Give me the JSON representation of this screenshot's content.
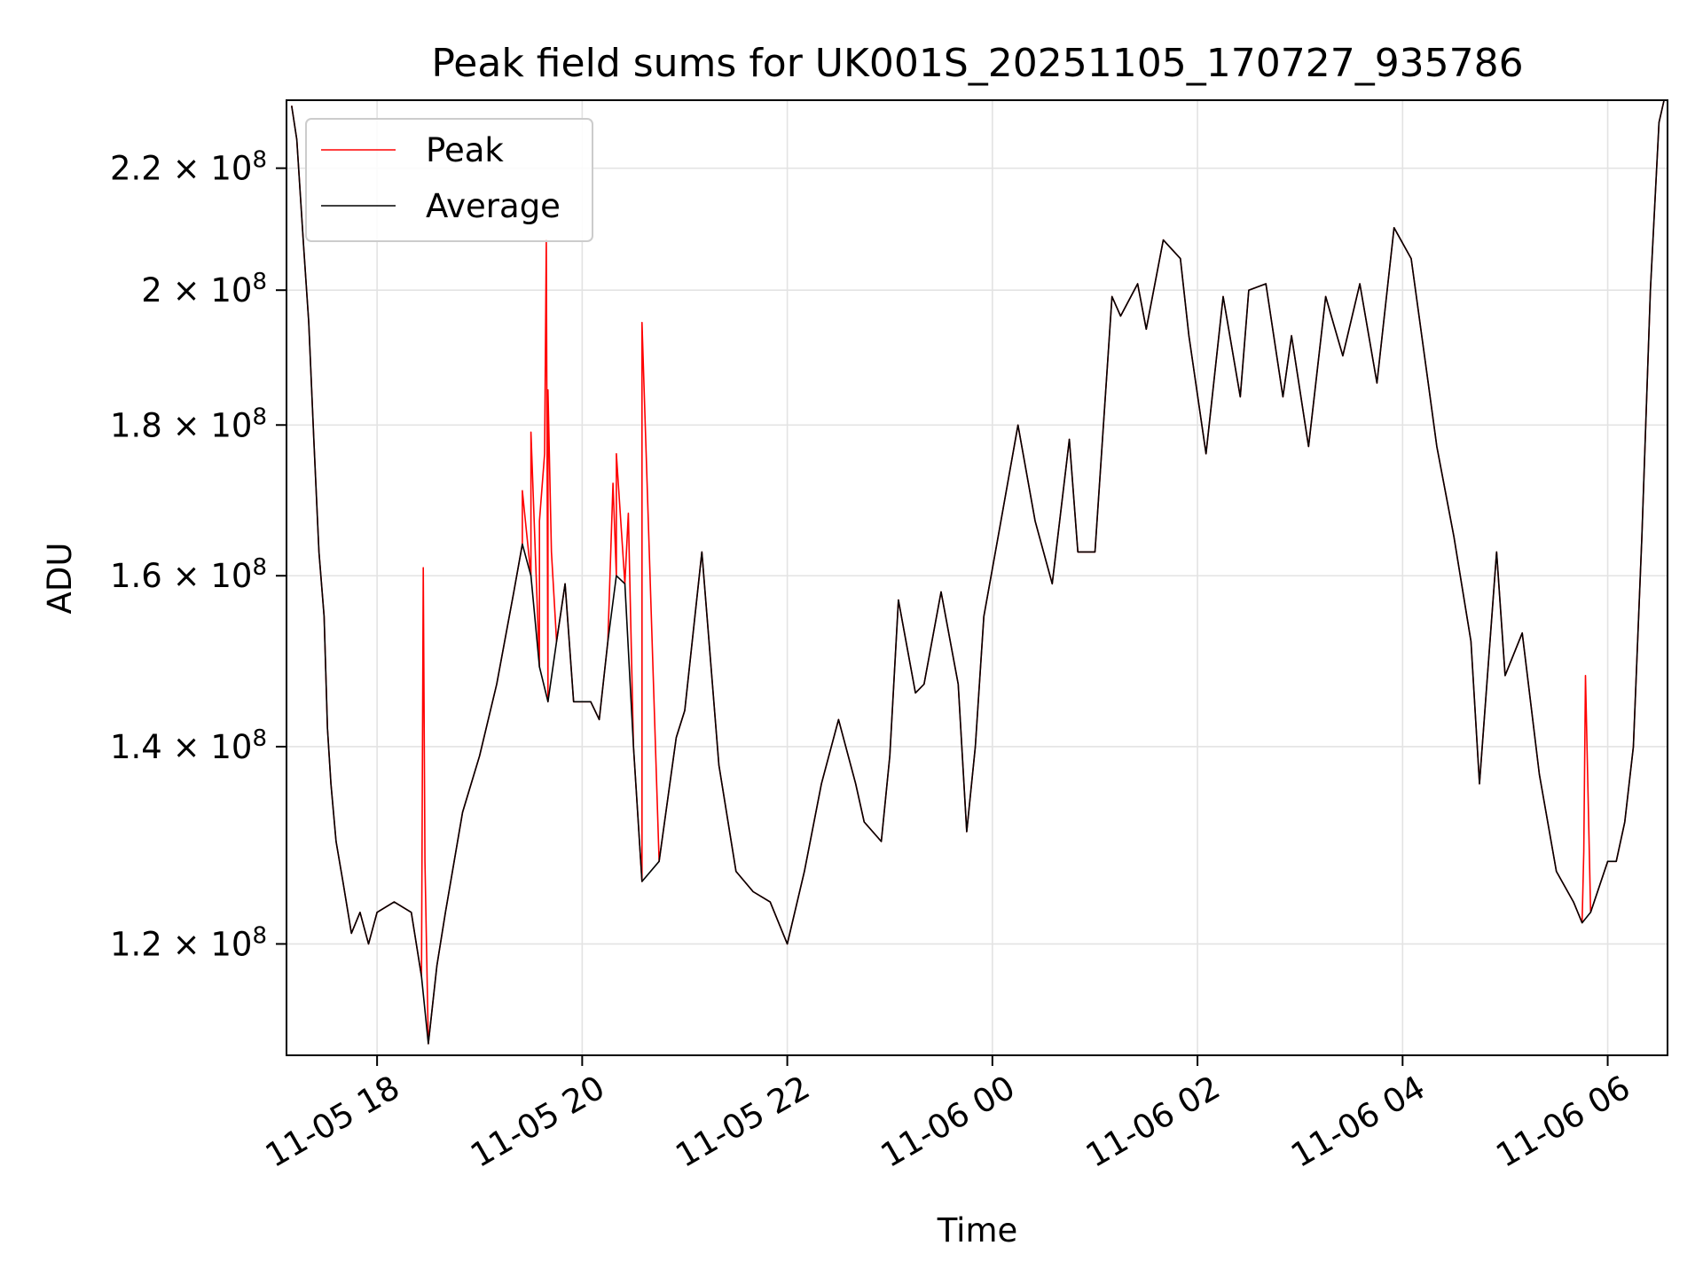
{
  "chart_data": {
    "type": "line",
    "title": "Peak field sums for UK001S_20251105_170727_935786",
    "xlabel": "Time",
    "ylabel": "ADU",
    "scale": {
      "y": "log"
    },
    "xlim": [
      "2025-11-05 17:07",
      "2025-11-06 06:35"
    ],
    "ylim": [
      110000000,
      232000000
    ],
    "grid": true,
    "legend": {
      "position": "top-left",
      "entries": [
        "Peak",
        "Average"
      ]
    },
    "x_ticks": [
      {
        "value": "2025-11-05 18:00",
        "label": "11-05 18"
      },
      {
        "value": "2025-11-05 20:00",
        "label": "11-05 20"
      },
      {
        "value": "2025-11-05 22:00",
        "label": "11-05 22"
      },
      {
        "value": "2025-11-06 00:00",
        "label": "11-06 00"
      },
      {
        "value": "2025-11-06 02:00",
        "label": "11-06 02"
      },
      {
        "value": "2025-11-06 04:00",
        "label": "11-06 04"
      },
      {
        "value": "2025-11-06 06:00",
        "label": "11-06 06"
      }
    ],
    "y_ticks": [
      {
        "value": 120000000,
        "mantissa": "1.2",
        "exp": "8"
      },
      {
        "value": 140000000,
        "mantissa": "1.4",
        "exp": "8"
      },
      {
        "value": 160000000,
        "mantissa": "1.6",
        "exp": "8"
      },
      {
        "value": 180000000,
        "mantissa": "1.8",
        "exp": "8"
      },
      {
        "value": 200000000,
        "mantissa": "2",
        "exp": "8"
      },
      {
        "value": 220000000,
        "mantissa": "2.2",
        "exp": "8"
      }
    ],
    "series": [
      {
        "name": "Average",
        "color": "#000000",
        "x": [
          "2025-11-05 17:10",
          "2025-11-05 17:13",
          "2025-11-05 17:17",
          "2025-11-05 17:20",
          "2025-11-05 17:23",
          "2025-11-05 17:26",
          "2025-11-05 17:29",
          "2025-11-05 17:31",
          "2025-11-05 17:33",
          "2025-11-05 17:36",
          "2025-11-05 17:40",
          "2025-11-05 17:45",
          "2025-11-05 17:50",
          "2025-11-05 17:55",
          "2025-11-05 18:00",
          "2025-11-05 18:10",
          "2025-11-05 18:20",
          "2025-11-05 18:26",
          "2025-11-05 18:30",
          "2025-11-05 18:35",
          "2025-11-05 18:40",
          "2025-11-05 18:50",
          "2025-11-05 19:00",
          "2025-11-05 19:10",
          "2025-11-05 19:20",
          "2025-11-05 19:25",
          "2025-11-05 19:30",
          "2025-11-05 19:35",
          "2025-11-05 19:40",
          "2025-11-05 19:45",
          "2025-11-05 19:50",
          "2025-11-05 19:55",
          "2025-11-05 20:05",
          "2025-11-05 20:10",
          "2025-11-05 20:15",
          "2025-11-05 20:20",
          "2025-11-05 20:25",
          "2025-11-05 20:30",
          "2025-11-05 20:35",
          "2025-11-05 20:45",
          "2025-11-05 20:55",
          "2025-11-05 21:00",
          "2025-11-05 21:10",
          "2025-11-05 21:20",
          "2025-11-05 21:30",
          "2025-11-05 21:40",
          "2025-11-05 21:50",
          "2025-11-05 22:00",
          "2025-11-05 22:10",
          "2025-11-05 22:20",
          "2025-11-05 22:30",
          "2025-11-05 22:40",
          "2025-11-05 22:45",
          "2025-11-05 22:55",
          "2025-11-05 23:00",
          "2025-11-05 23:05",
          "2025-11-05 23:15",
          "2025-11-05 23:20",
          "2025-11-05 23:30",
          "2025-11-05 23:40",
          "2025-11-05 23:45",
          "2025-11-05 23:50",
          "2025-11-05 23:55",
          "2025-11-06 00:05",
          "2025-11-06 00:15",
          "2025-11-06 00:25",
          "2025-11-06 00:35",
          "2025-11-06 00:45",
          "2025-11-06 00:50",
          "2025-11-06 01:00",
          "2025-11-06 01:10",
          "2025-11-06 01:15",
          "2025-11-06 01:25",
          "2025-11-06 01:30",
          "2025-11-06 01:40",
          "2025-11-06 01:50",
          "2025-11-06 01:55",
          "2025-11-06 02:05",
          "2025-11-06 02:15",
          "2025-11-06 02:25",
          "2025-11-06 02:30",
          "2025-11-06 02:40",
          "2025-11-06 02:50",
          "2025-11-06 02:55",
          "2025-11-06 03:05",
          "2025-11-06 03:15",
          "2025-11-06 03:25",
          "2025-11-06 03:35",
          "2025-11-06 03:45",
          "2025-11-06 03:55",
          "2025-11-06 04:05",
          "2025-11-06 04:15",
          "2025-11-06 04:20",
          "2025-11-06 04:30",
          "2025-11-06 04:40",
          "2025-11-06 04:45",
          "2025-11-06 04:55",
          "2025-11-06 05:00",
          "2025-11-06 05:10",
          "2025-11-06 05:20",
          "2025-11-06 05:30",
          "2025-11-06 05:40",
          "2025-11-06 05:45",
          "2025-11-06 05:50",
          "2025-11-06 06:00",
          "2025-11-06 06:05",
          "2025-11-06 06:10",
          "2025-11-06 06:15",
          "2025-11-06 06:20",
          "2025-11-06 06:25",
          "2025-11-06 06:30",
          "2025-11-06 06:33"
        ],
        "values": [
          231000000,
          225000000,
          207000000,
          195000000,
          178000000,
          163000000,
          155000000,
          142000000,
          136000000,
          130000000,
          126000000,
          121000000,
          123000000,
          120000000,
          123000000,
          124000000,
          123000000,
          117000000,
          111000000,
          118000000,
          123000000,
          133000000,
          139000000,
          147000000,
          158000000,
          164000000,
          160000000,
          149000000,
          145000000,
          152000000,
          159000000,
          145000000,
          145000000,
          143000000,
          152000000,
          160000000,
          159000000,
          140000000,
          126000000,
          128000000,
          141000000,
          144000000,
          163000000,
          138000000,
          127000000,
          125000000,
          124000000,
          120000000,
          127000000,
          136000000,
          143000000,
          136000000,
          132000000,
          130000000,
          139000000,
          157000000,
          146000000,
          147000000,
          158000000,
          147000000,
          131000000,
          140000000,
          155000000,
          167000000,
          180000000,
          167000000,
          159000000,
          178000000,
          163000000,
          163000000,
          199000000,
          196000000,
          201000000,
          194000000,
          208000000,
          205000000,
          193000000,
          176000000,
          199000000,
          184000000,
          200000000,
          201000000,
          184000000,
          193000000,
          177000000,
          199000000,
          190000000,
          201000000,
          186000000,
          210000000,
          205000000,
          186000000,
          177000000,
          165000000,
          152000000,
          136000000,
          163000000,
          148000000,
          153000000,
          137000000,
          127000000,
          124000000,
          122000000,
          123000000,
          128000000,
          128000000,
          132000000,
          140000000,
          165000000,
          200000000,
          228000000,
          232000000
        ]
      },
      {
        "name": "Peak",
        "color": "#ff0000",
        "x": [
          "2025-11-05 18:26",
          "2025-11-05 18:27",
          "2025-11-05 18:28",
          "2025-11-05 19:25",
          "2025-11-05 19:30",
          "2025-11-05 19:35",
          "2025-11-05 19:38",
          "2025-11-05 19:39",
          "2025-11-05 19:40",
          "2025-11-05 19:42",
          "2025-11-05 20:18",
          "2025-11-05 20:20",
          "2025-11-05 20:27",
          "2025-11-05 20:35",
          "2025-11-06 05:46",
          "2025-11-06 05:47"
        ],
        "values": [
          117000000,
          161000000,
          128000000,
          171000000,
          179000000,
          167000000,
          176000000,
          208000000,
          185000000,
          163000000,
          172000000,
          176000000,
          168000000,
          195000000,
          129000000,
          148000000
        ]
      }
    ]
  }
}
